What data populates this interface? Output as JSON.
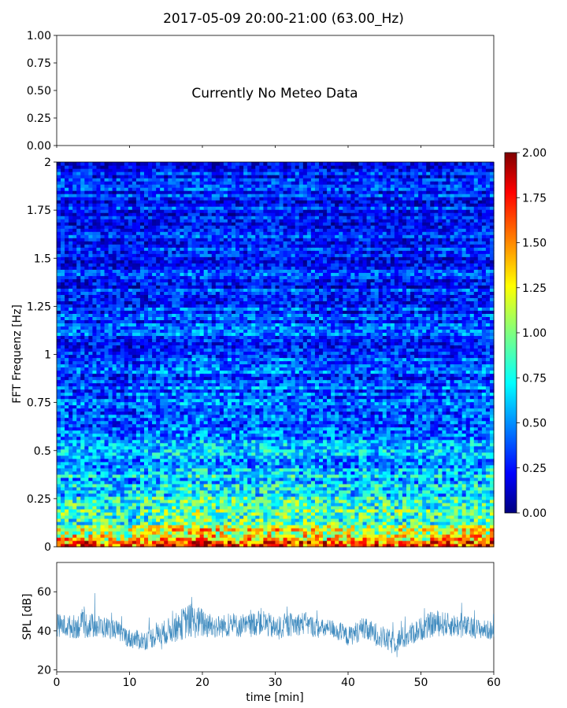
{
  "title": "2017-05-09 20:00-21:00 (63.00_Hz)",
  "chart_data": [
    {
      "panel": "meteo",
      "type": "line",
      "annotation": "Currently No Meteo Data",
      "ylim": [
        0,
        1
      ],
      "yticks": [
        "0.00",
        "0.25",
        "0.50",
        "0.75",
        "1.00"
      ],
      "xlim": [
        0,
        60
      ],
      "series": []
    },
    {
      "panel": "spectrogram",
      "type": "heatmap",
      "xlabel": "",
      "ylabel": "FFT Frequenz [Hz]",
      "xlim": [
        0,
        60
      ],
      "ylim": [
        0,
        2
      ],
      "yticks": [
        "0",
        "0.25",
        "0.5",
        "0.75",
        "1",
        "1.25",
        "1.5",
        "1.75",
        "2"
      ],
      "colormap": "jet",
      "colorbar": {
        "range": [
          0,
          2
        ],
        "ticks": [
          "0.00",
          "0.25",
          "0.50",
          "0.75",
          "1.00",
          "1.25",
          "1.50",
          "1.75",
          "2.00"
        ]
      },
      "profile": {
        "freq_hz": [
          0.0,
          0.05,
          0.1,
          0.2,
          0.3,
          0.5,
          0.75,
          1.0,
          1.5,
          2.0
        ],
        "typical_value": [
          1.7,
          1.3,
          1.05,
          0.85,
          0.7,
          0.55,
          0.45,
          0.38,
          0.32,
          0.3
        ]
      },
      "time_profile": {
        "t_min": [
          0,
          5,
          10,
          15,
          20,
          25,
          30,
          35,
          40,
          45,
          50,
          55,
          60
        ],
        "relative_level": [
          1.0,
          0.95,
          0.9,
          1.05,
          1.1,
          1.0,
          1.1,
          1.0,
          0.95,
          1.0,
          0.95,
          1.0,
          1.05
        ]
      }
    },
    {
      "panel": "spl",
      "type": "line",
      "xlabel": "time [min]",
      "ylabel": "SPL [dB]",
      "xlim": [
        0,
        60
      ],
      "ylim": [
        19,
        75
      ],
      "xticks": [
        "0",
        "10",
        "20",
        "30",
        "40",
        "50",
        "60"
      ],
      "yticks": [
        "20",
        "40",
        "60"
      ],
      "color": "#1f77b4",
      "series": [
        {
          "t_min": [
            0,
            2,
            4,
            6,
            8,
            10,
            12,
            14,
            16,
            18,
            20,
            22,
            24,
            26,
            28,
            30,
            32,
            34,
            36,
            38,
            40,
            42,
            44,
            46,
            48,
            50,
            52,
            54,
            56,
            58,
            60
          ],
          "spl_db": [
            43,
            42,
            43,
            42,
            41,
            36,
            35,
            38,
            41,
            45,
            44,
            42,
            43,
            42,
            45,
            41,
            43,
            44,
            41,
            41,
            37,
            41,
            38,
            34,
            37,
            41,
            44,
            43,
            42,
            41,
            40
          ],
          "spread_db": [
            6,
            6,
            7,
            6,
            5,
            5,
            5,
            6,
            7,
            9,
            8,
            6,
            6,
            6,
            7,
            6,
            6,
            6,
            5,
            5,
            5,
            6,
            6,
            6,
            6,
            6,
            7,
            6,
            6,
            5,
            5
          ]
        }
      ]
    }
  ]
}
